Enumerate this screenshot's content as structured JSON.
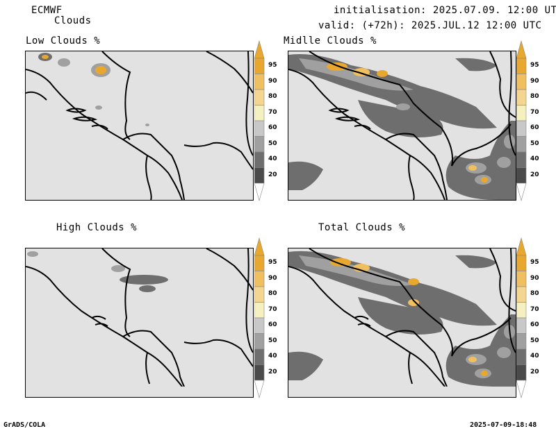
{
  "header": {
    "model": "ECMWF",
    "product": "Clouds",
    "init": "initialisation: 2025.07.09. 12:00 UTC",
    "valid": "valid: (+72h): 2025.JUL.12 12:00 UTC"
  },
  "panels": [
    {
      "title": "Low Clouds %"
    },
    {
      "title": "Midlle Clouds %"
    },
    {
      "title": "High Clouds %"
    },
    {
      "title": "Total Clouds %"
    }
  ],
  "colorbar": {
    "labels": [
      "95",
      "90",
      "80",
      "70",
      "60",
      "50",
      "40",
      "20"
    ],
    "colors": [
      "#e8a830",
      "#f0c060",
      "#f4d690",
      "#f5f0c0",
      "#c8c8c8",
      "#a0a0a0",
      "#6e6e6e",
      "#4a4a4a"
    ]
  },
  "footer": {
    "left": "GrADS/COLA",
    "right": "2025-07-09-18:48"
  }
}
